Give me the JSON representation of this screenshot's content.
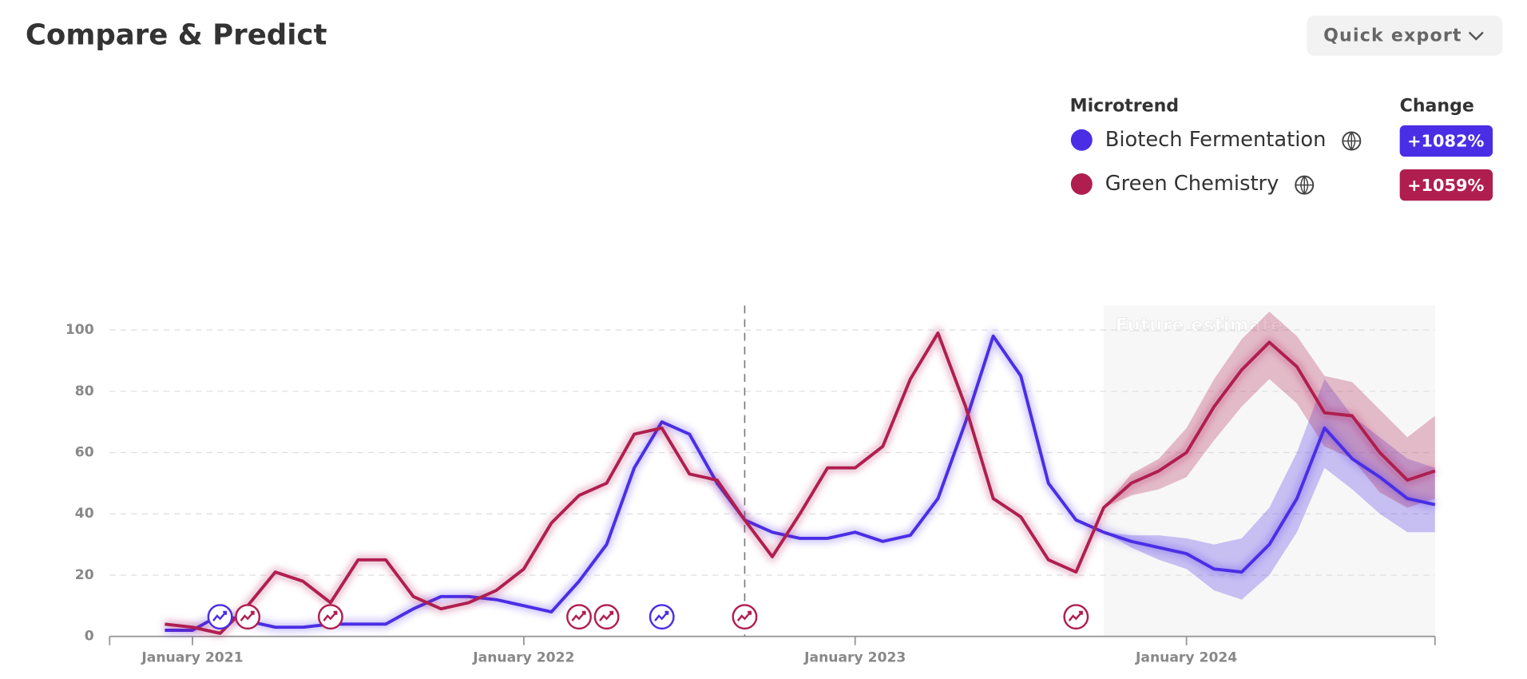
{
  "header": {
    "title": "Compare & Predict",
    "export_button": "Quick export"
  },
  "legend": {
    "series_heading": "Microtrend",
    "change_heading": "Change"
  },
  "chart_data": {
    "type": "line",
    "annotation": "Future estimate",
    "forecast_start": "2023-10",
    "reference_x": "2022-09",
    "xlim": [
      "2020-10",
      "2024-10"
    ],
    "xticks": [
      {
        "value": "2021-01",
        "label": "January 2021"
      },
      {
        "value": "2022-01",
        "label": "January 2022"
      },
      {
        "value": "2023-01",
        "label": "January 2023"
      },
      {
        "value": "2024-01",
        "label": "January 2024"
      }
    ],
    "ylim": [
      0,
      108
    ],
    "yticks": [
      0,
      20,
      40,
      60,
      80,
      100
    ],
    "grid": true,
    "x": [
      "2020-12",
      "2021-01",
      "2021-02",
      "2021-03",
      "2021-04",
      "2021-05",
      "2021-06",
      "2021-07",
      "2021-08",
      "2021-09",
      "2021-10",
      "2021-11",
      "2021-12",
      "2022-01",
      "2022-02",
      "2022-03",
      "2022-04",
      "2022-05",
      "2022-06",
      "2022-07",
      "2022-08",
      "2022-09",
      "2022-10",
      "2022-11",
      "2022-12",
      "2023-01",
      "2023-02",
      "2023-03",
      "2023-04",
      "2023-05",
      "2023-06",
      "2023-07",
      "2023-08",
      "2023-09",
      "2023-10",
      "2023-11",
      "2023-12",
      "2024-01",
      "2024-02",
      "2024-03",
      "2024-04",
      "2024-05",
      "2024-06",
      "2024-07",
      "2024-08",
      "2024-09",
      "2024-10"
    ],
    "series": [
      {
        "name": "Biotech Fermentation",
        "color": "#4a2ee6",
        "change": 1082,
        "change_label": "+1082%",
        "values": [
          2,
          2,
          7,
          5,
          3,
          3,
          4,
          4,
          4,
          9,
          13,
          13,
          12,
          10,
          8,
          18,
          30,
          55,
          70,
          66,
          50,
          38,
          34,
          32,
          32,
          34,
          31,
          33,
          45,
          70,
          98,
          85,
          50,
          38,
          34,
          31,
          29,
          27,
          22,
          21,
          30,
          45,
          68,
          58,
          52,
          45,
          43
        ],
        "forecast": {
          "x": [
            "2023-10",
            "2023-11",
            "2023-12",
            "2024-01",
            "2024-02",
            "2024-03",
            "2024-04",
            "2024-05",
            "2024-06",
            "2024-07",
            "2024-08",
            "2024-09",
            "2024-10"
          ],
          "lower": [
            34,
            29,
            25,
            22,
            15,
            12,
            20,
            34,
            55,
            48,
            40,
            34,
            34
          ],
          "upper": [
            34,
            33,
            33,
            32,
            30,
            32,
            42,
            60,
            84,
            72,
            65,
            58,
            55
          ]
        }
      },
      {
        "name": "Green Chemistry",
        "color": "#b01e50",
        "change": 1059,
        "change_label": "+1059%",
        "values": [
          4,
          3,
          1,
          10,
          21,
          18,
          11,
          25,
          25,
          13,
          9,
          11,
          15,
          22,
          37,
          46,
          50,
          66,
          68,
          53,
          51,
          38,
          26,
          40,
          55,
          55,
          62,
          84,
          99,
          75,
          45,
          39,
          25,
          21,
          42,
          50,
          54,
          60,
          75,
          87,
          96,
          88,
          73,
          72,
          60,
          51,
          54
        ],
        "forecast": {
          "x": [
            "2023-10",
            "2023-11",
            "2023-12",
            "2024-01",
            "2024-02",
            "2024-03",
            "2024-04",
            "2024-05",
            "2024-06",
            "2024-07",
            "2024-08",
            "2024-09",
            "2024-10"
          ],
          "lower": [
            42,
            46,
            48,
            52,
            64,
            75,
            84,
            76,
            62,
            58,
            47,
            42,
            45
          ],
          "upper": [
            42,
            53,
            58,
            68,
            84,
            97,
            106,
            98,
            85,
            83,
            74,
            65,
            72
          ]
        }
      }
    ],
    "events": [
      {
        "x": "2021-02",
        "series": 0
      },
      {
        "x": "2021-03",
        "series": 1
      },
      {
        "x": "2021-06",
        "series": 1
      },
      {
        "x": "2022-03",
        "series": 1
      },
      {
        "x": "2022-04",
        "series": 1
      },
      {
        "x": "2022-06",
        "series": 0
      },
      {
        "x": "2022-09",
        "series": 1
      },
      {
        "x": "2023-09",
        "series": 1
      }
    ]
  }
}
